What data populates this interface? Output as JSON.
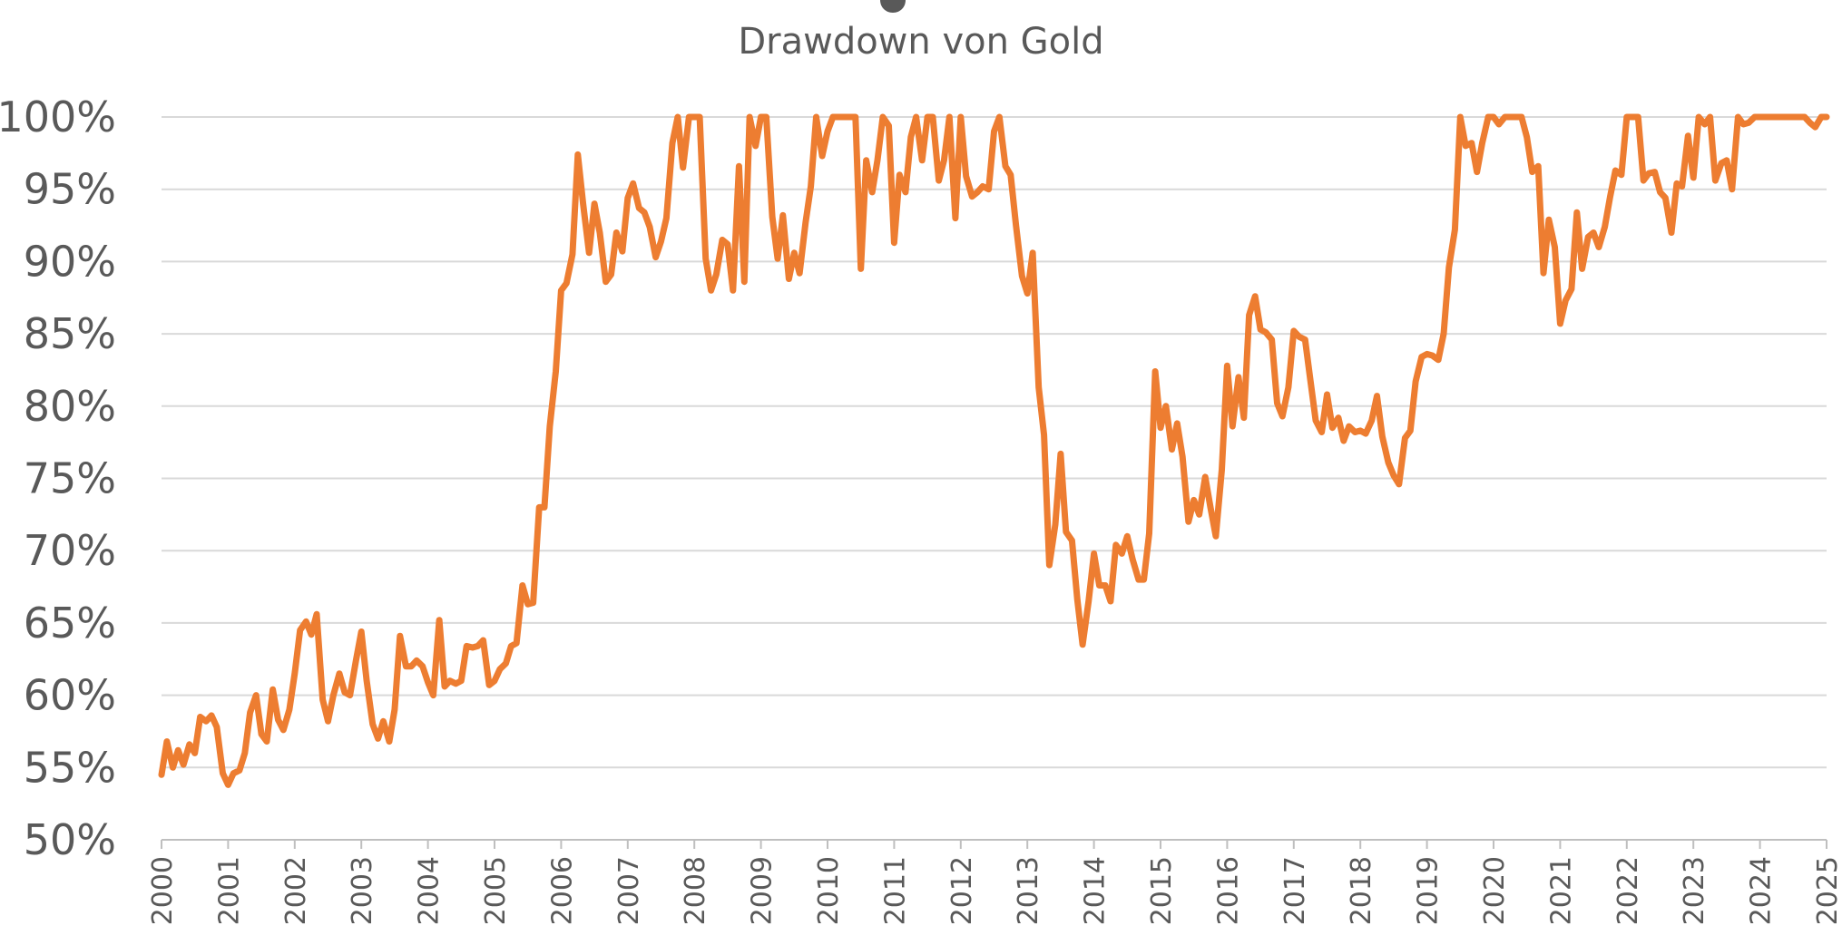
{
  "colors": {
    "series": "#ED7D31",
    "grid": "#D9D9D9",
    "text": "#595959"
  },
  "chart_data": {
    "type": "line",
    "subtitle": "Drawdown von Gold",
    "ylim": [
      50,
      100
    ],
    "yticks": [
      "50%",
      "55%",
      "60%",
      "65%",
      "70%",
      "75%",
      "80%",
      "85%",
      "90%",
      "95%",
      "100%"
    ],
    "xlim": [
      2000,
      2025
    ],
    "xticks": [
      "2000",
      "2001",
      "2002",
      "2003",
      "2004",
      "2005",
      "2006",
      "2007",
      "2008",
      "2009",
      "2010",
      "2011",
      "2012",
      "2013",
      "2014",
      "2015",
      "2016",
      "2017",
      "2018",
      "2019",
      "2020",
      "2021",
      "2022",
      "2023",
      "2024",
      "2025"
    ],
    "grid": true,
    "legend": "none",
    "series": [
      {
        "x": [
          2000.0,
          2000.08,
          2000.17,
          2000.25,
          2000.33,
          2000.42,
          2000.5,
          2000.58,
          2000.67,
          2000.75,
          2000.83,
          2000.92,
          2001.0,
          2001.08,
          2001.17,
          2001.25,
          2001.33,
          2001.42,
          2001.5,
          2001.58,
          2001.67,
          2001.75,
          2001.83,
          2001.92,
          2002.0,
          2002.08,
          2002.17,
          2002.25,
          2002.33,
          2002.42,
          2002.5,
          2002.58,
          2002.67,
          2002.75,
          2002.83,
          2002.92,
          2003.0,
          2003.08,
          2003.17,
          2003.25,
          2003.33,
          2003.42,
          2003.5,
          2003.58,
          2003.67,
          2003.75,
          2003.83,
          2003.92,
          2004.0,
          2004.08,
          2004.17,
          2004.25,
          2004.33,
          2004.42,
          2004.5,
          2004.58,
          2004.67,
          2004.75,
          2004.83,
          2004.92,
          2005.0,
          2005.08,
          2005.17,
          2005.25,
          2005.33,
          2005.42,
          2005.5,
          2005.58,
          2005.67,
          2005.75,
          2005.83,
          2005.92,
          2006.0,
          2006.08,
          2006.17,
          2006.25,
          2006.33,
          2006.42,
          2006.5,
          2006.58,
          2006.67,
          2006.75,
          2006.83,
          2006.92,
          2007.0,
          2007.08,
          2007.17,
          2007.25,
          2007.33,
          2007.42,
          2007.5,
          2007.58,
          2007.67,
          2007.75,
          2007.83,
          2007.92,
          2008.0,
          2008.08,
          2008.17,
          2008.25,
          2008.33,
          2008.42,
          2008.5,
          2008.58,
          2008.67,
          2008.75,
          2008.83,
          2008.92,
          2009.0,
          2009.08,
          2009.17,
          2009.25,
          2009.33,
          2009.42,
          2009.5,
          2009.58,
          2009.67,
          2009.75,
          2009.83,
          2009.92,
          2010.0,
          2010.08,
          2010.17,
          2010.25,
          2010.33,
          2010.42,
          2010.5,
          2010.58,
          2010.67,
          2010.75,
          2010.83,
          2010.92,
          2011.0,
          2011.08,
          2011.17,
          2011.25,
          2011.33,
          2011.42,
          2011.5,
          2011.58,
          2011.67,
          2011.75,
          2011.83,
          2011.92,
          2012.0,
          2012.08,
          2012.17,
          2012.25,
          2012.33,
          2012.42,
          2012.5,
          2012.58,
          2012.67,
          2012.75,
          2012.83,
          2012.92,
          2013.0,
          2013.08,
          2013.17,
          2013.25,
          2013.33,
          2013.42,
          2013.5,
          2013.58,
          2013.67,
          2013.75,
          2013.83,
          2013.92,
          2014.0,
          2014.08,
          2014.17,
          2014.25,
          2014.33,
          2014.42,
          2014.5,
          2014.58,
          2014.67,
          2014.75,
          2014.83,
          2014.92,
          2015.0,
          2015.08,
          2015.17,
          2015.25,
          2015.33,
          2015.42,
          2015.5,
          2015.58,
          2015.67,
          2015.75,
          2015.83,
          2015.92,
          2016.0,
          2016.08,
          2016.17,
          2016.25,
          2016.33,
          2016.42,
          2016.5,
          2016.58,
          2016.67,
          2016.75,
          2016.83,
          2016.92,
          2017.0,
          2017.08,
          2017.17,
          2017.25,
          2017.33,
          2017.42,
          2017.5,
          2017.58,
          2017.67,
          2017.75,
          2017.83,
          2017.92,
          2018.0,
          2018.08,
          2018.17,
          2018.25,
          2018.33,
          2018.42,
          2018.5,
          2018.58,
          2018.67,
          2018.75,
          2018.83,
          2018.92,
          2019.0,
          2019.08,
          2019.17,
          2019.25,
          2019.33,
          2019.42,
          2019.5,
          2019.58,
          2019.67,
          2019.75,
          2019.83,
          2019.92,
          2020.0,
          2020.08,
          2020.17,
          2020.25,
          2020.33,
          2020.42,
          2020.5,
          2020.58,
          2020.67,
          2020.75,
          2020.83,
          2020.92,
          2021.0,
          2021.08,
          2021.17,
          2021.25,
          2021.33,
          2021.42,
          2021.5,
          2021.58,
          2021.67,
          2021.75,
          2021.83,
          2021.92,
          2022.0,
          2022.08,
          2022.17,
          2022.25,
          2022.33,
          2022.42,
          2022.5,
          2022.58,
          2022.67,
          2022.75,
          2022.83,
          2022.92,
          2023.0,
          2023.08,
          2023.17,
          2023.25,
          2023.33,
          2023.42,
          2023.5,
          2023.58,
          2023.67,
          2023.75,
          2023.83,
          2023.92,
          2024.0,
          2024.08,
          2024.17,
          2024.25,
          2024.33,
          2024.42,
          2024.5,
          2024.58,
          2024.67,
          2024.75,
          2024.83,
          2024.92,
          2025.0
        ],
        "y": [
          54.5,
          56.8,
          55.0,
          56.2,
          55.2,
          56.6,
          56.0,
          58.5,
          58.2,
          58.6,
          57.8,
          54.6,
          53.8,
          54.6,
          54.8,
          56.0,
          58.8,
          60.0,
          57.3,
          56.8,
          60.4,
          58.3,
          57.6,
          59.0,
          61.5,
          64.5,
          65.1,
          64.2,
          65.6,
          59.7,
          58.2,
          60.0,
          61.5,
          60.2,
          60.0,
          62.4,
          64.4,
          61.0,
          58.0,
          57.0,
          58.2,
          56.8,
          59.0,
          64.1,
          62.0,
          62.0,
          62.4,
          62.0,
          60.9,
          60.0,
          65.2,
          60.6,
          61.0,
          60.8,
          61.0,
          63.4,
          63.3,
          63.4,
          63.8,
          60.7,
          61.0,
          61.8,
          62.2,
          63.4,
          63.6,
          67.6,
          66.3,
          66.4,
          73.0,
          73.0,
          78.6,
          82.4,
          88.0,
          88.5,
          90.5,
          97.4,
          94.0,
          90.6,
          94.0,
          92.0,
          88.6,
          89.1,
          92.0,
          90.7,
          94.4,
          95.4,
          93.7,
          93.4,
          92.4,
          90.3,
          91.4,
          93.0,
          98.2,
          100.0,
          96.5,
          100.0,
          100.0,
          100.0,
          90.2,
          88.0,
          89.1,
          91.5,
          91.2,
          88.0,
          96.6,
          88.6,
          100.0,
          98.0,
          100.0,
          100.0,
          93.1,
          90.2,
          93.2,
          88.8,
          90.6,
          89.2,
          92.7,
          95.2,
          100.0,
          97.3,
          99.0,
          100.0,
          100.0,
          100.0,
          100.0,
          100.0,
          89.5,
          97.0,
          94.8,
          97.0,
          100.0,
          99.4,
          91.3,
          96.0,
          94.8,
          98.6,
          100.0,
          97.0,
          100.0,
          100.0,
          95.6,
          97.0,
          100.0,
          93.0,
          100.0,
          95.9,
          94.5,
          94.8,
          95.2,
          95.0,
          99.0,
          100.0,
          96.6,
          96.0,
          92.5,
          89.0,
          87.8,
          90.6,
          81.3,
          78.0,
          69.0,
          71.8,
          76.7,
          71.3,
          70.7,
          66.6,
          63.5,
          66.5,
          69.8,
          67.6,
          67.6,
          66.5,
          70.4,
          69.8,
          71.0,
          69.4,
          68.0,
          68.0,
          71.2,
          82.4,
          78.5,
          80.0,
          77.0,
          78.8,
          76.5,
          72.0,
          73.5,
          72.5,
          75.1,
          73.0,
          71.0,
          75.6,
          82.8,
          78.6,
          82.0,
          79.2,
          86.3,
          87.6,
          85.3,
          85.1,
          84.6,
          80.2,
          79.3,
          81.3,
          85.2,
          84.8,
          84.6,
          81.8,
          79.0,
          78.2,
          80.8,
          78.5,
          79.2,
          77.6,
          78.6,
          78.2,
          78.3,
          78.1,
          79.0,
          80.7,
          77.9,
          76.1,
          75.2,
          74.6,
          77.8,
          78.3,
          81.7,
          83.4,
          83.6,
          83.5,
          83.2,
          85.0,
          89.6,
          92.2,
          100.0,
          98.0,
          98.2,
          96.2,
          98.2,
          100.0,
          100.0,
          99.5,
          100.0,
          100.0,
          100.0,
          100.0,
          98.6,
          96.2,
          96.6,
          89.2,
          92.9,
          91.0,
          85.7,
          87.3,
          88.1,
          93.4,
          89.5,
          91.7,
          92.0,
          91.0,
          92.4,
          94.5,
          96.3,
          96.0,
          100.0,
          100.0,
          100.0,
          95.6,
          96.1,
          96.2,
          94.8,
          94.4,
          92.0,
          95.4,
          95.2,
          98.7,
          95.8,
          100.0,
          99.5,
          100.0,
          95.6,
          96.8,
          97.0,
          95.0,
          100.0,
          99.5,
          99.6,
          100.0,
          100.0,
          100.0,
          100.0,
          100.0,
          100.0,
          100.0,
          100.0,
          100.0,
          100.0,
          99.6,
          99.3,
          100.0,
          100.0
        ]
      }
    ]
  }
}
